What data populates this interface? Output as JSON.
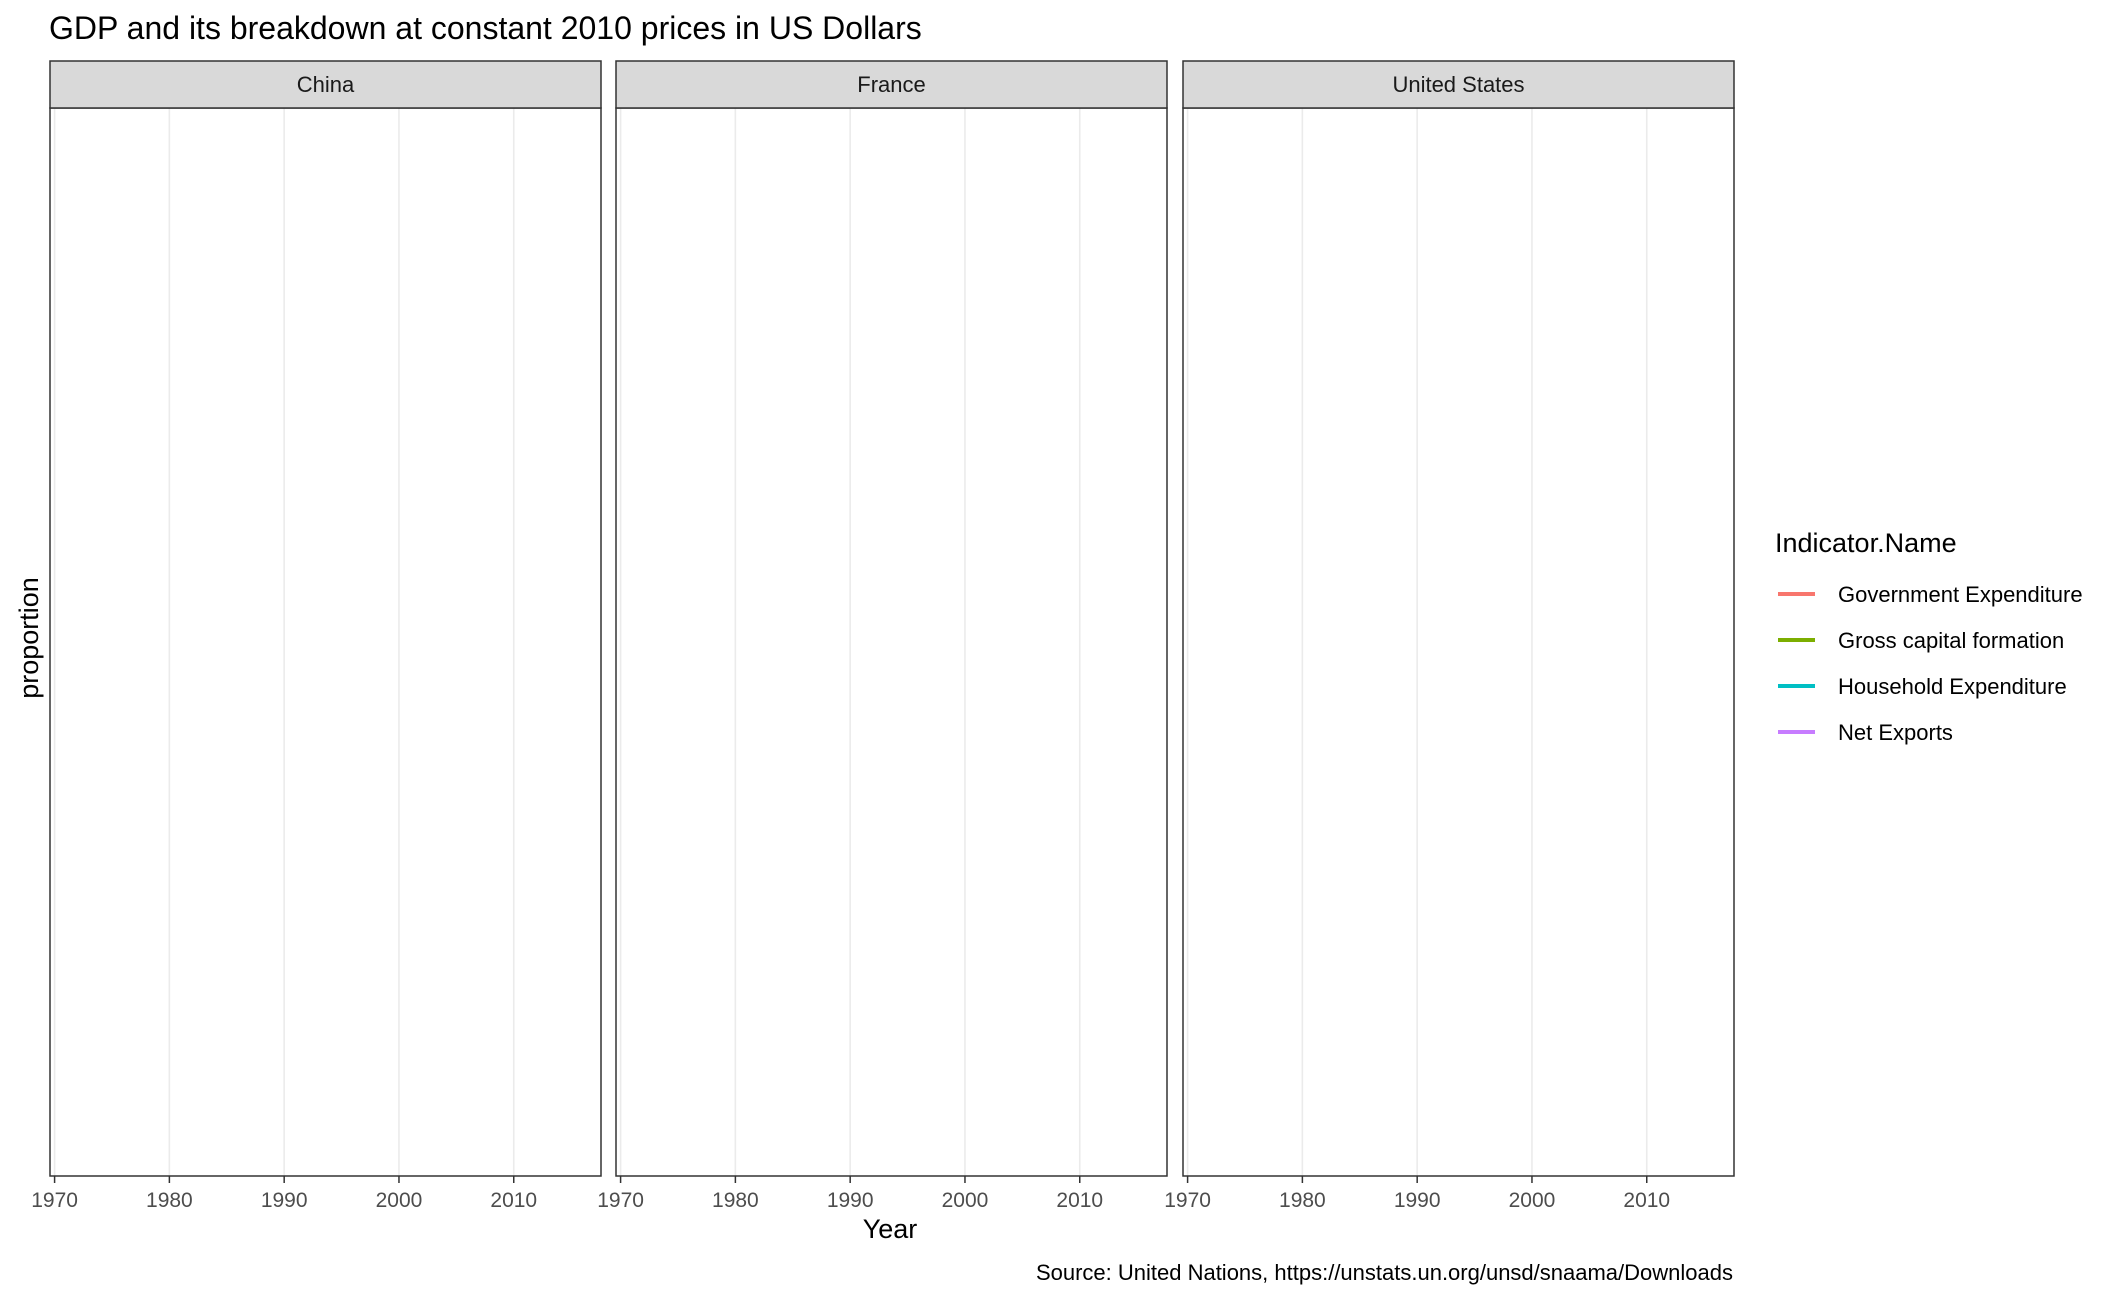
{
  "chart_data": {
    "type": "line",
    "title": "GDP and its breakdown at constant 2010 prices in US Dollars",
    "xlabel": "Year",
    "ylabel": "proportion",
    "caption": "Source: United Nations, https://unstats.un.org/unsd/snaama/Downloads",
    "facets": [
      "China",
      "France",
      "United States"
    ],
    "x_ticks": [
      1970,
      1980,
      1990,
      2000,
      2010
    ],
    "xlim": [
      1969.6,
      2017.6
    ],
    "grid": "vertical major gridlines on",
    "legend": {
      "title": "Indicator.Name",
      "placement": "right",
      "entries": [
        {
          "name": "Government Expenditure",
          "color": "#F8766D"
        },
        {
          "name": "Gross capital formation",
          "color": "#7CAE00"
        },
        {
          "name": "Household Expenditure",
          "color": "#00BFC4"
        },
        {
          "name": "Net Exports",
          "color": "#C77CFF"
        }
      ]
    },
    "series": [
      {
        "name": "Government Expenditure",
        "values": []
      },
      {
        "name": "Gross capital formation",
        "values": []
      },
      {
        "name": "Household Expenditure",
        "values": []
      },
      {
        "name": "Net Exports",
        "values": []
      }
    ]
  },
  "colors": {
    "strip_fill": "#D9D9D9",
    "panel_border": "#333333",
    "grid": "#EBEBEB",
    "tick_text": "#4D4D4D"
  }
}
